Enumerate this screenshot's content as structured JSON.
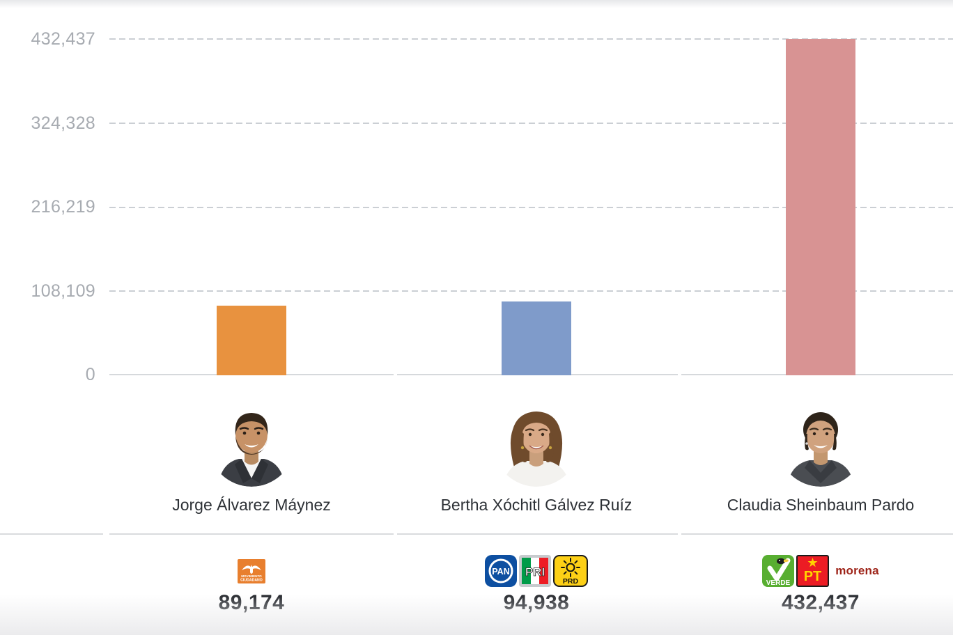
{
  "y_axis": {
    "ticks": [
      "432,437",
      "324,328",
      "216,219",
      "108,109",
      "0"
    ]
  },
  "candidates": [
    {
      "name": "Jorge Álvarez Máynez",
      "votes": 89174,
      "votes_label": "89,174",
      "bar_color": "#e8923f",
      "parties": [
        "Movimiento Ciudadano"
      ]
    },
    {
      "name": "Bertha Xóchitl Gálvez Ruíz",
      "votes": 94938,
      "votes_label": "94,938",
      "bar_color": "#7f9bca",
      "parties": [
        "PAN",
        "PRI",
        "PRD"
      ]
    },
    {
      "name": "Claudia Sheinbaum Pardo",
      "votes": 432437,
      "votes_label": "432,437",
      "bar_color": "#d89393",
      "parties": [
        "Partido Verde",
        "PT",
        "Morena"
      ]
    }
  ],
  "party_logos": {
    "mc_line1": "MOVIMIENTO",
    "mc_line2": "CIUDADANO",
    "pan": "PAN",
    "pri": "PRI",
    "prd": "PRD",
    "verde": "VERDE",
    "pt": "PT",
    "morena": "morena"
  },
  "chart_data": {
    "type": "bar",
    "title": "",
    "xlabel": "",
    "ylabel": "",
    "categories": [
      "Jorge Álvarez Máynez",
      "Bertha Xóchitl Gálvez Ruíz",
      "Claudia Sheinbaum Pardo"
    ],
    "values": [
      89174,
      94938,
      432437
    ],
    "value_labels": [
      "89,174",
      "94,938",
      "432,437"
    ],
    "bar_colors": [
      "#e8923f",
      "#7f9bca",
      "#d89393"
    ],
    "ylim": [
      0,
      432437
    ],
    "y_ticks": [
      0,
      108109,
      216219,
      324328,
      432437
    ],
    "y_tick_labels": [
      "0",
      "108,109",
      "216,219",
      "324,328",
      "432,437"
    ],
    "grid": "horizontal-dashed",
    "legend": "none"
  }
}
